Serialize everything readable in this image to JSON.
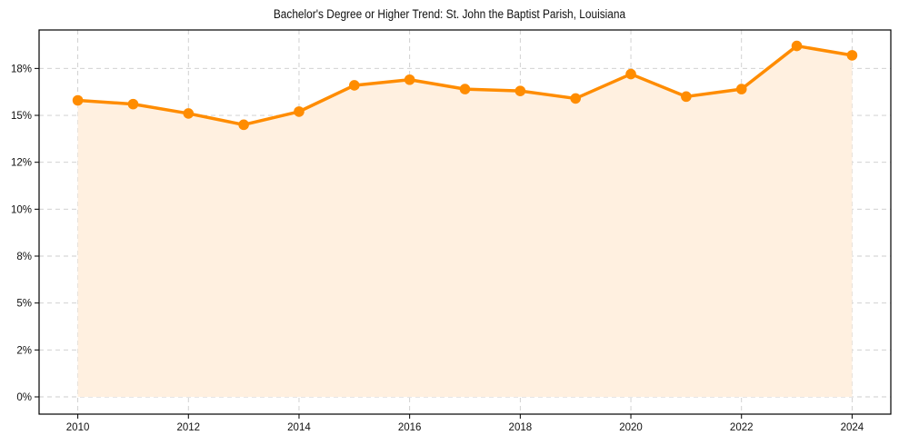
{
  "chart_data": {
    "type": "line",
    "title": "Bachelor's Degree or Higher Trend: St. John the Baptist Parish, Louisiana",
    "xlabel": "",
    "ylabel": "",
    "x": [
      2010,
      2011,
      2012,
      2013,
      2014,
      2015,
      2016,
      2017,
      2018,
      2019,
      2020,
      2021,
      2022,
      2023,
      2024
    ],
    "series": [
      {
        "name": "Bachelor's Degree or Higher (%)",
        "values": [
          15.8,
          15.6,
          15.1,
          14.5,
          15.2,
          16.6,
          16.9,
          16.4,
          16.3,
          15.9,
          17.2,
          16.0,
          16.4,
          18.7,
          18.2
        ],
        "color": "#ff8c00",
        "fill": "#fff0e0",
        "marker": "circle"
      }
    ],
    "xticks": [
      "2010",
      "2012",
      "2014",
      "2016",
      "2018",
      "2020",
      "2022",
      "2024"
    ],
    "yticks": [
      {
        "value": 0,
        "label": "0%"
      },
      {
        "value": 2.5,
        "label": "2%"
      },
      {
        "value": 5,
        "label": "5%"
      },
      {
        "value": 7.5,
        "label": "8%"
      },
      {
        "value": 10,
        "label": "10%"
      },
      {
        "value": 12.5,
        "label": "12%"
      },
      {
        "value": 15,
        "label": "15%"
      },
      {
        "value": 17.5,
        "label": "18%"
      }
    ],
    "xlim": [
      2009.3,
      2024.7
    ],
    "ylim": [
      -0.92,
      19.55
    ],
    "grid": true,
    "legend": "none"
  },
  "colors": {
    "line": "#ff8c00",
    "fill": "#fff0e0",
    "grid": "#cccccc",
    "axis": "#000000"
  }
}
